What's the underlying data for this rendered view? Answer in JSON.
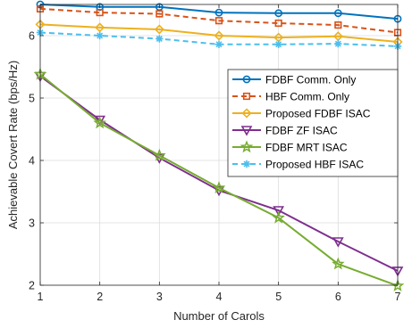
{
  "chart_data": {
    "type": "line",
    "title": "",
    "xlabel": "Number of Carols",
    "ylabel": "Achievable Covert Rate (bps/Hz)",
    "x": [
      1,
      2,
      3,
      4,
      5,
      6,
      7
    ],
    "xlim": [
      1,
      7
    ],
    "ylim": [
      2,
      6.5
    ],
    "xticks": [
      "1",
      "2",
      "3",
      "4",
      "5",
      "6",
      "7"
    ],
    "yticks": [
      "2",
      "3",
      "4",
      "5",
      "6"
    ],
    "grid": true,
    "legend_position": "middle-right",
    "series": [
      {
        "name": "FDBF Comm. Only",
        "color": "#0072BD",
        "style": "solid",
        "marker": "circle",
        "values": [
          6.5,
          6.46,
          6.46,
          6.37,
          6.36,
          6.36,
          6.27
        ]
      },
      {
        "name": "HBF Comm. Only",
        "color": "#D95319",
        "style": "dashed",
        "marker": "square",
        "values": [
          6.43,
          6.37,
          6.35,
          6.24,
          6.2,
          6.17,
          6.05
        ]
      },
      {
        "name": "Proposed FDBF ISAC",
        "color": "#EDB120",
        "style": "solid",
        "marker": "diamond",
        "values": [
          6.18,
          6.13,
          6.1,
          6.0,
          5.97,
          5.99,
          5.9
        ]
      },
      {
        "name": "FDBF ZF ISAC",
        "color": "#7E2F8E",
        "style": "solid",
        "marker": "triangle-down",
        "values": [
          5.35,
          4.65,
          4.04,
          3.52,
          3.2,
          2.7,
          2.23
        ]
      },
      {
        "name": "FDBF MRT ISAC",
        "color": "#77AC30",
        "style": "solid",
        "marker": "star",
        "values": [
          5.38,
          4.6,
          4.08,
          3.56,
          3.08,
          2.34,
          1.99
        ]
      },
      {
        "name": "Proposed HBF ISAC",
        "color": "#4DBEEE",
        "style": "dashed",
        "marker": "asterisk",
        "values": [
          6.05,
          6.0,
          5.95,
          5.86,
          5.86,
          5.87,
          5.83
        ]
      }
    ]
  }
}
